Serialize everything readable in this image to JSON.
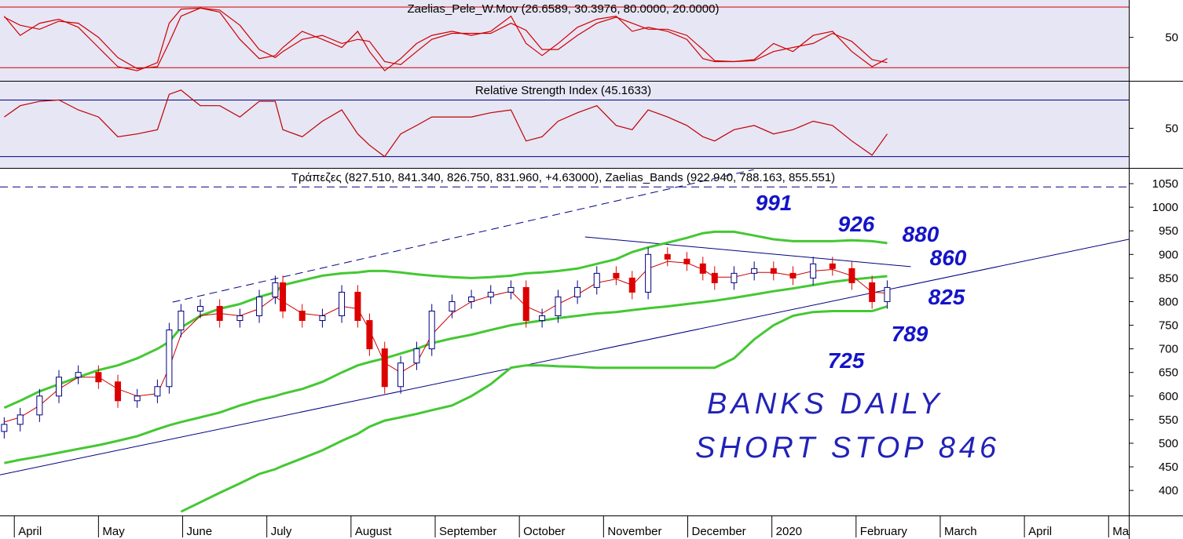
{
  "chart_data": [
    {
      "type": "line",
      "title": "Zaelias_Pele_W.Mov (26.6589, 30.3976, 80.0000, 20.0000)",
      "x": [
        -0.12,
        0.07,
        0.3,
        0.53,
        0.76,
        1.0,
        1.23,
        1.46,
        1.7,
        1.84,
        1.98,
        2.21,
        2.44,
        2.68,
        2.91,
        3.1,
        3.19,
        3.42,
        3.66,
        3.89,
        4.08,
        4.22,
        4.4,
        4.59,
        4.78,
        4.96,
        5.2,
        5.43,
        5.66,
        5.9,
        6.08,
        6.27,
        6.46,
        6.69,
        6.92,
        7.15,
        7.34,
        7.53,
        7.76,
        7.99,
        8.18,
        8.32,
        8.55,
        8.79,
        9.02,
        9.25,
        9.49,
        9.72,
        9.95,
        10.19,
        10.37
      ],
      "series": [
        {
          "color": "#d00000",
          "values": [
            71,
            52,
            64,
            68,
            60,
            40,
            21,
            17,
            25,
            64,
            78,
            79,
            75,
            48,
            29,
            32,
            40,
            56,
            48,
            40,
            56,
            36,
            17,
            29,
            44,
            52,
            56,
            52,
            56,
            71,
            44,
            32,
            44,
            60,
            68,
            71,
            56,
            60,
            56,
            48,
            29,
            26,
            26,
            28,
            44,
            36,
            52,
            56,
            36,
            21,
            29
          ]
        },
        {
          "color": "#d00000",
          "values": [
            70,
            62,
            58,
            66,
            64,
            50,
            30,
            19,
            21,
            45,
            71,
            79,
            77,
            62,
            38,
            30,
            36,
            48,
            52,
            44,
            48,
            46,
            26,
            23,
            36,
            48,
            54,
            54,
            54,
            64,
            57,
            38,
            38,
            52,
            64,
            70,
            64,
            58,
            58,
            52,
            38,
            27,
            26,
            27,
            36,
            40,
            44,
            54,
            46,
            28,
            25
          ]
        }
      ],
      "reference_lines": [
        80,
        20
      ],
      "reference_color": "#d00000",
      "xlim": [
        -0.17,
        13.24
      ],
      "ylim": [
        7,
        87
      ],
      "yticks": [
        50
      ]
    },
    {
      "type": "line",
      "title": "Relative Strength Index (45.1633)",
      "x": [
        -0.12,
        0.07,
        0.3,
        0.53,
        0.76,
        1.0,
        1.23,
        1.46,
        1.7,
        1.84,
        1.98,
        2.21,
        2.44,
        2.68,
        2.91,
        3.1,
        3.19,
        3.42,
        3.66,
        3.89,
        4.08,
        4.22,
        4.4,
        4.59,
        4.78,
        4.96,
        5.2,
        5.43,
        5.66,
        5.9,
        6.08,
        6.27,
        6.46,
        6.69,
        6.92,
        7.15,
        7.34,
        7.53,
        7.76,
        7.99,
        8.18,
        8.32,
        8.55,
        8.79,
        9.02,
        9.25,
        9.49,
        9.72,
        9.95,
        10.19,
        10.37
      ],
      "series": [
        {
          "color": "#c00000",
          "values": [
            58,
            66,
            69,
            70,
            63,
            58,
            44,
            46,
            49,
            74,
            77,
            66,
            66,
            58,
            69,
            69,
            49,
            44,
            55,
            63,
            46,
            38,
            30,
            46,
            52,
            58,
            58,
            58,
            61,
            63,
            41,
            44,
            55,
            61,
            66,
            52,
            49,
            63,
            58,
            52,
            44,
            41,
            49,
            52,
            46,
            49,
            55,
            52,
            41,
            31,
            46
          ]
        }
      ],
      "reference_lines": [
        70,
        30
      ],
      "reference_color": "#000080",
      "xlim": [
        -0.17,
        13.24
      ],
      "ylim": [
        22,
        83
      ],
      "yticks": [
        50
      ]
    },
    {
      "type": "candlestick",
      "title": "Τράπεζες (827.510, 841.340, 826.750, 831.960, +4.63000), Zaelias_Bands (922.940, 788.163, 855.551)",
      "x": [
        -0.12,
        0.07,
        0.3,
        0.53,
        0.76,
        1.0,
        1.23,
        1.46,
        1.7,
        1.84,
        1.98,
        2.21,
        2.44,
        2.68,
        2.91,
        3.1,
        3.19,
        3.42,
        3.66,
        3.89,
        4.08,
        4.22,
        4.4,
        4.59,
        4.78,
        4.96,
        5.2,
        5.43,
        5.66,
        5.9,
        6.08,
        6.27,
        6.46,
        6.69,
        6.92,
        7.15,
        7.34,
        7.53,
        7.76,
        7.99,
        8.18,
        8.32,
        8.55,
        8.79,
        9.02,
        9.25,
        9.49,
        9.72,
        9.95,
        10.19,
        10.37
      ],
      "open": [
        525,
        540,
        560,
        600,
        640,
        650,
        630,
        590,
        600,
        620,
        740,
        780,
        790,
        760,
        770,
        810,
        840,
        780,
        760,
        770,
        820,
        760,
        700,
        620,
        670,
        700,
        780,
        800,
        810,
        820,
        830,
        760,
        770,
        810,
        830,
        860,
        850,
        820,
        900,
        890,
        880,
        860,
        840,
        860,
        870,
        860,
        850,
        880,
        870,
        840,
        800
      ],
      "high": [
        555,
        575,
        615,
        655,
        665,
        665,
        645,
        615,
        635,
        755,
        795,
        805,
        805,
        785,
        825,
        855,
        855,
        795,
        785,
        835,
        835,
        775,
        715,
        685,
        715,
        795,
        815,
        825,
        835,
        845,
        845,
        785,
        825,
        845,
        875,
        875,
        865,
        915,
        915,
        905,
        895,
        875,
        875,
        885,
        885,
        875,
        895,
        895,
        885,
        855,
        845
      ],
      "low": [
        510,
        525,
        545,
        585,
        625,
        615,
        575,
        575,
        585,
        605,
        725,
        765,
        745,
        745,
        755,
        795,
        765,
        745,
        745,
        755,
        745,
        685,
        605,
        605,
        655,
        685,
        765,
        785,
        795,
        805,
        745,
        745,
        755,
        795,
        815,
        835,
        805,
        805,
        875,
        865,
        845,
        825,
        825,
        845,
        845,
        835,
        835,
        855,
        825,
        785,
        785
      ],
      "close": [
        540,
        560,
        600,
        640,
        650,
        630,
        590,
        600,
        620,
        740,
        780,
        790,
        760,
        770,
        810,
        840,
        780,
        760,
        770,
        820,
        760,
        700,
        620,
        670,
        700,
        780,
        800,
        810,
        820,
        830,
        760,
        770,
        810,
        830,
        860,
        850,
        820,
        900,
        890,
        880,
        860,
        840,
        860,
        870,
        860,
        850,
        880,
        870,
        840,
        800,
        830
      ],
      "up_color": "#ffffff",
      "down_color": "#dd0000",
      "candle_edge": "#000080",
      "series": [
        {
          "color": "#44c833",
          "width": 3,
          "values": [
            575,
            590,
            610,
            625,
            640,
            655,
            665,
            680,
            700,
            715,
            745,
            770,
            785,
            795,
            810,
            820,
            835,
            845,
            855,
            860,
            862,
            865,
            865,
            862,
            858,
            855,
            852,
            850,
            852,
            855,
            860,
            862,
            865,
            870,
            880,
            890,
            905,
            915,
            925,
            935,
            945,
            948,
            948,
            940,
            932,
            928,
            928,
            928,
            930,
            928,
            924
          ]
        },
        {
          "color": "#44c833",
          "width": 3,
          "values": [
            458,
            465,
            472,
            480,
            488,
            496,
            505,
            515,
            530,
            538,
            545,
            555,
            565,
            580,
            592,
            600,
            605,
            615,
            630,
            650,
            665,
            672,
            680,
            690,
            700,
            712,
            722,
            730,
            740,
            750,
            755,
            760,
            765,
            770,
            775,
            778,
            782,
            786,
            790,
            795,
            799,
            802,
            808,
            815,
            822,
            828,
            835,
            842,
            847,
            851,
            854
          ]
        },
        {
          "color": "#44c833",
          "width": 3,
          "values": [
            null,
            null,
            null,
            null,
            null,
            null,
            null,
            null,
            null,
            null,
            355,
            375,
            395,
            415,
            435,
            445,
            452,
            468,
            485,
            505,
            520,
            535,
            548,
            555,
            562,
            570,
            580,
            600,
            625,
            660,
            665,
            665,
            663,
            662,
            660,
            660,
            660,
            660,
            660,
            660,
            660,
            660,
            680,
            720,
            750,
            770,
            778,
            780,
            780,
            780,
            790
          ]
        },
        {
          "color": "#cc0000",
          "width": 1,
          "values": [
            545,
            555,
            580,
            615,
            640,
            640,
            615,
            600,
            605,
            660,
            730,
            770,
            775,
            770,
            785,
            810,
            800,
            775,
            770,
            790,
            785,
            740,
            670,
            650,
            670,
            730,
            775,
            800,
            812,
            822,
            790,
            775,
            795,
            815,
            840,
            848,
            835,
            870,
            885,
            882,
            868,
            852,
            852,
            862,
            862,
            855,
            865,
            868,
            855,
            820,
            818
          ]
        }
      ],
      "trendlines": [
        {
          "x": [
            -0.17,
            13.24
          ],
          "y": [
            433,
            932
          ],
          "color": "#000080",
          "dashed": false
        },
        {
          "x": [
            1.88,
            8.79
          ],
          "y": [
            799,
            1080
          ],
          "color": "#000080",
          "dashed": true
        },
        {
          "x": [
            6.78,
            10.65
          ],
          "y": [
            937,
            874
          ],
          "color": "#000080",
          "dashed": false
        },
        {
          "x": [
            -0.17,
            13.24
          ],
          "y": [
            1043,
            1043
          ],
          "color": "#000080",
          "dashed": true
        }
      ],
      "annotations": [
        "991",
        "926",
        "880",
        "860",
        "825",
        "789",
        "725"
      ],
      "notes": [
        "BANKS DAILY",
        "SHORT STOP 846"
      ],
      "xlim": [
        -0.17,
        13.24
      ],
      "ylim": [
        347,
        1080
      ],
      "yticks": [
        400,
        450,
        500,
        550,
        600,
        650,
        700,
        750,
        800,
        850,
        900,
        950,
        1000,
        1050
      ],
      "xticks": [
        {
          "value": 0,
          "label": "April"
        },
        {
          "value": 1,
          "label": "May"
        },
        {
          "value": 2,
          "label": "June"
        },
        {
          "value": 3,
          "label": "July"
        },
        {
          "value": 4,
          "label": "August"
        },
        {
          "value": 5,
          "label": "September"
        },
        {
          "value": 6,
          "label": "October"
        },
        {
          "value": 7,
          "label": "November"
        },
        {
          "value": 8,
          "label": "December"
        },
        {
          "value": 9,
          "label": "2020"
        },
        {
          "value": 10,
          "label": "February"
        },
        {
          "value": 11,
          "label": "March"
        },
        {
          "value": 12,
          "label": "April"
        },
        {
          "value": 13,
          "label": "Ma"
        }
      ]
    }
  ]
}
